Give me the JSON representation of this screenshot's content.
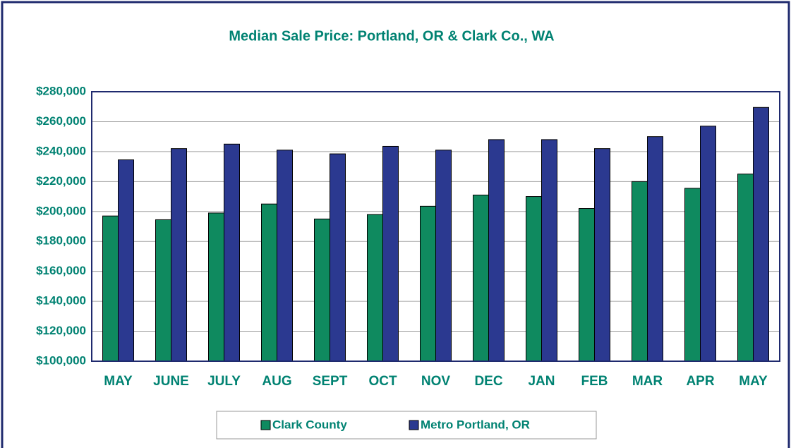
{
  "chart_data": {
    "type": "bar",
    "title": "Median Sale Price: Portland, OR & Clark Co., WA",
    "categories": [
      "MAY",
      "JUNE",
      "JULY",
      "AUG",
      "SEPT",
      "OCT",
      "NOV",
      "DEC",
      "JAN",
      "FEB",
      "MAR",
      "APR",
      "MAY"
    ],
    "series": [
      {
        "name": "Clark County",
        "color": "#0f8a5f",
        "values": [
          197000,
          194500,
          199000,
          205000,
          195000,
          198000,
          203500,
          211000,
          210000,
          202000,
          220000,
          215500,
          225000
        ]
      },
      {
        "name": "Metro Portland, OR",
        "color": "#2b3990",
        "values": [
          234500,
          242000,
          245000,
          241000,
          238500,
          243500,
          241000,
          248000,
          248000,
          242000,
          250000,
          257000,
          269500
        ]
      }
    ],
    "ylim": [
      100000,
      280000
    ],
    "yticks": [
      {
        "value": 100000,
        "label": "$100,000"
      },
      {
        "value": 120000,
        "label": "$120,000"
      },
      {
        "value": 140000,
        "label": "$140,000"
      },
      {
        "value": 160000,
        "label": "$160,000"
      },
      {
        "value": 180000,
        "label": "$180,000"
      },
      {
        "value": 200000,
        "label": "$200,000"
      },
      {
        "value": 220000,
        "label": "$220,000"
      },
      {
        "value": 240000,
        "label": "$240,000"
      },
      {
        "value": 260000,
        "label": "$260,000"
      },
      {
        "value": 280000,
        "label": "$280,000"
      }
    ],
    "grid": true,
    "legend": "bottom"
  }
}
